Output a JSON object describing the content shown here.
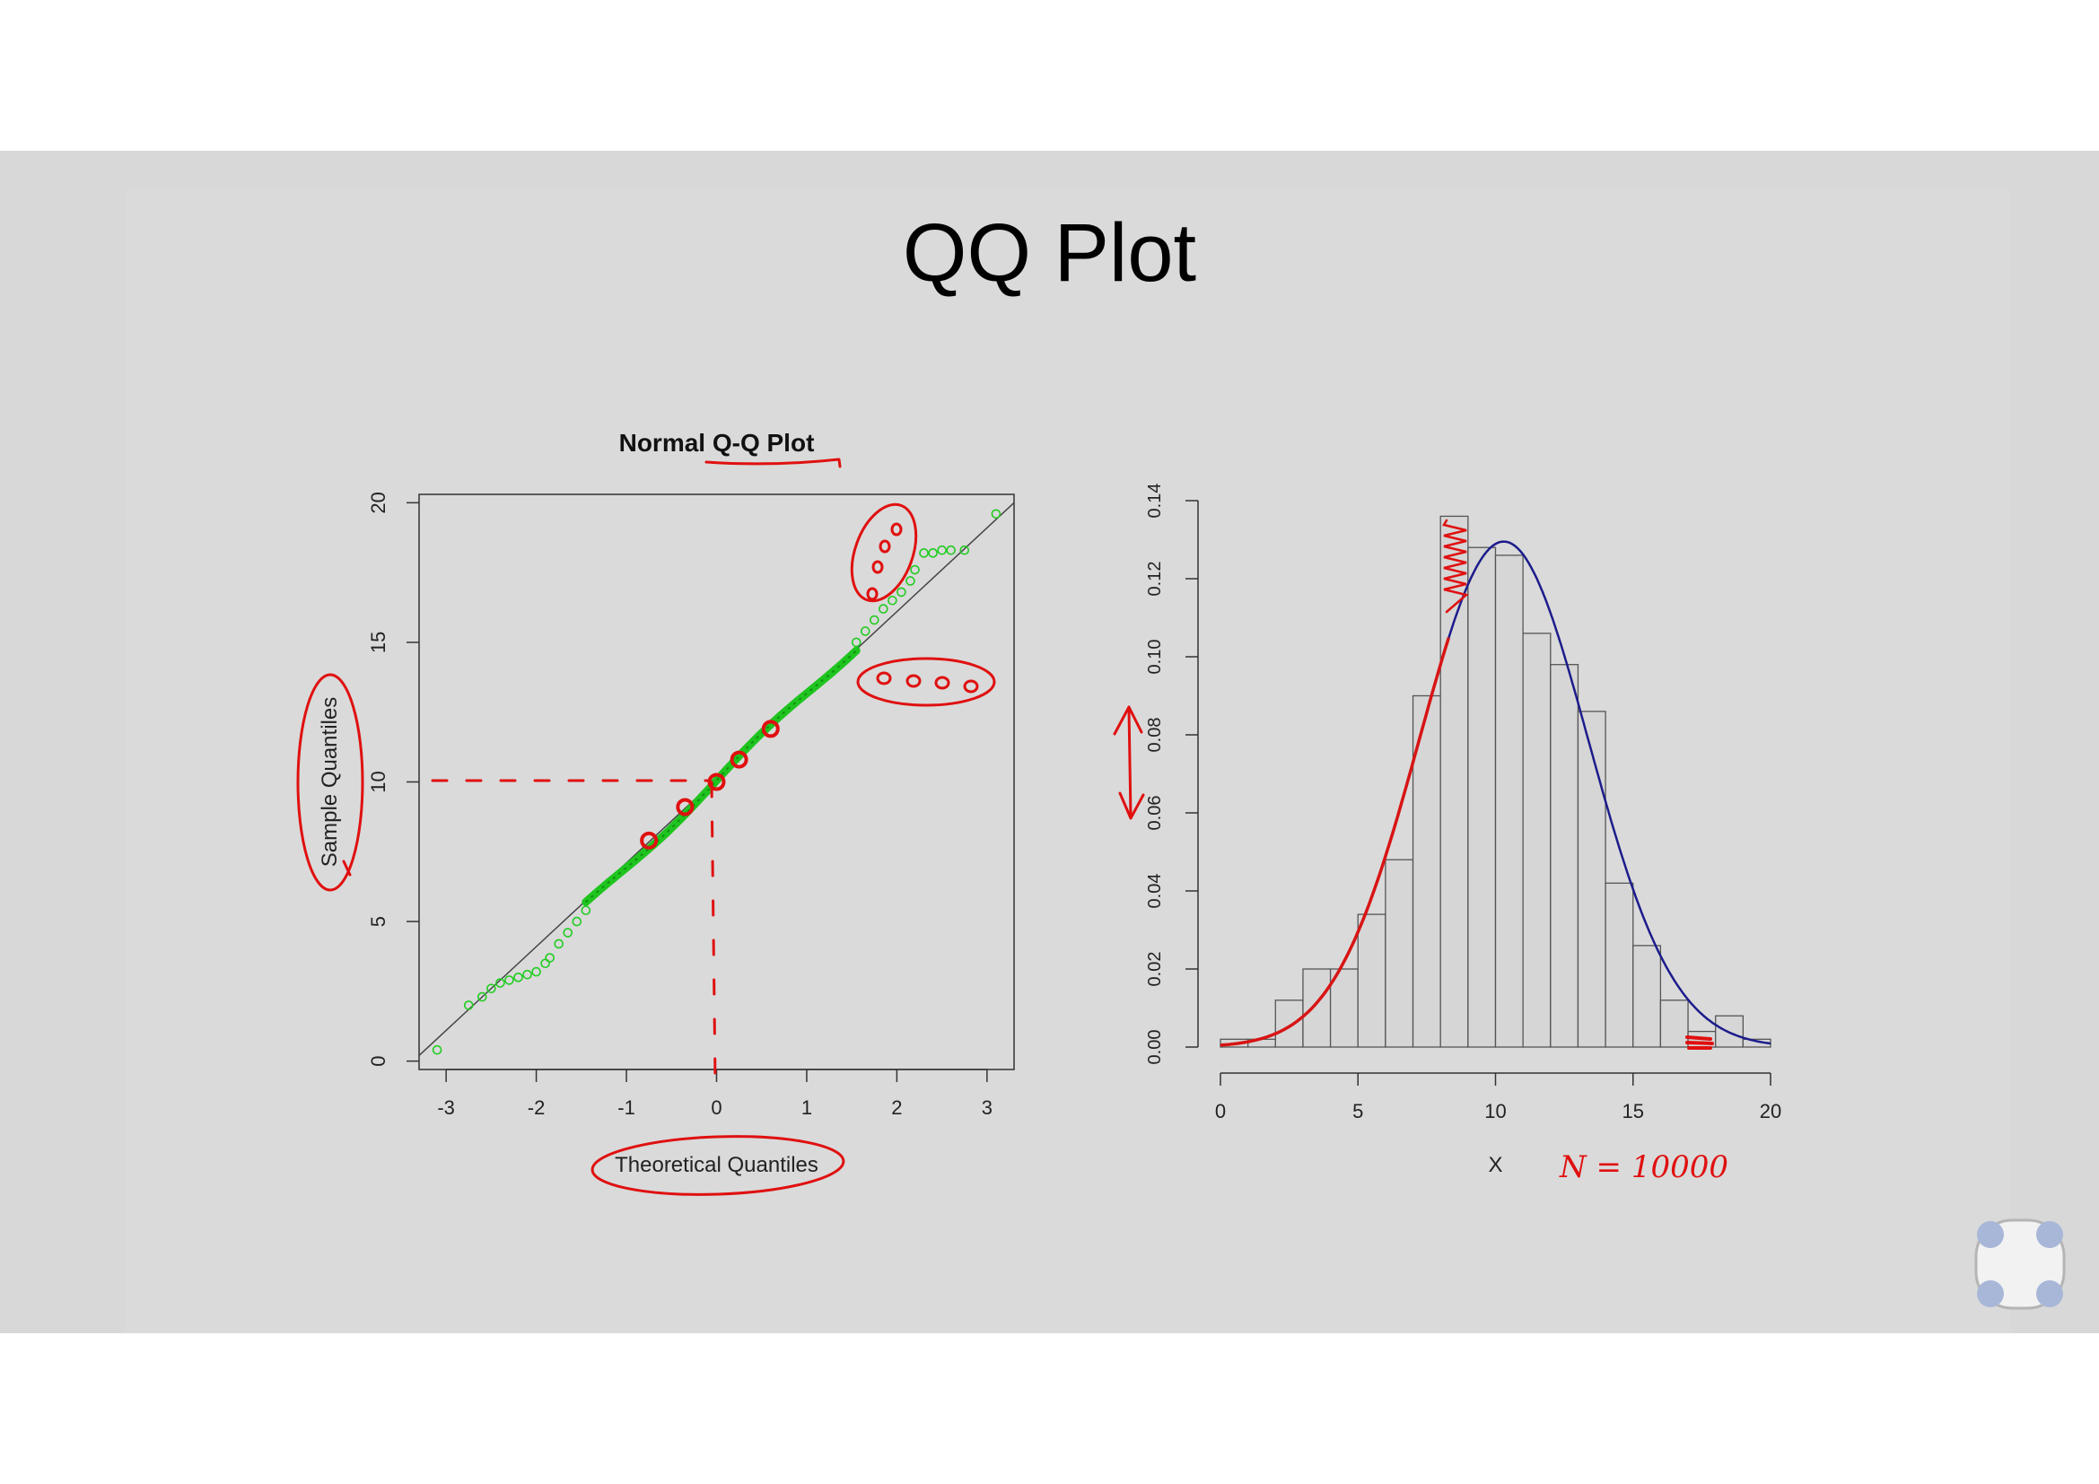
{
  "slide": {
    "title": "QQ Plot"
  },
  "chart_data": [
    {
      "type": "scatter",
      "title": "Normal Q-Q Plot",
      "xlabel": "Theoretical Quantiles",
      "ylabel": "Sample Quantiles",
      "xlim": [
        -3.3,
        3.3
      ],
      "ylim": [
        -0.3,
        20.3
      ],
      "x_ticks": [
        -3,
        -2,
        -1,
        0,
        1,
        2,
        3
      ],
      "y_ticks": [
        0,
        5,
        10,
        15,
        20
      ],
      "grid": false,
      "reference_line": {
        "from": [
          -3.3,
          0.2
        ],
        "to": [
          3.3,
          20.0
        ]
      },
      "series": [
        {
          "marker": "circle",
          "color": "#22cc22",
          "points": [
            [
              -3.1,
              0.4
            ],
            [
              -2.75,
              2.0
            ],
            [
              -2.6,
              2.3
            ],
            [
              -2.5,
              2.6
            ],
            [
              -2.4,
              2.8
            ],
            [
              -2.3,
              2.9
            ],
            [
              -2.2,
              3.0
            ],
            [
              -2.1,
              3.1
            ],
            [
              -2.0,
              3.2
            ],
            [
              -1.9,
              3.5
            ],
            [
              -1.85,
              3.7
            ],
            [
              -1.75,
              4.2
            ],
            [
              -1.65,
              4.6
            ],
            [
              -1.55,
              5.0
            ],
            [
              -1.45,
              5.4
            ],
            [
              1.55,
              15.0
            ],
            [
              1.65,
              15.4
            ],
            [
              1.75,
              15.8
            ],
            [
              1.85,
              16.2
            ],
            [
              1.95,
              16.5
            ],
            [
              2.05,
              16.8
            ],
            [
              2.15,
              17.2
            ],
            [
              2.2,
              17.6
            ],
            [
              2.3,
              18.2
            ],
            [
              2.4,
              18.2
            ],
            [
              2.5,
              18.3
            ],
            [
              2.6,
              18.3
            ],
            [
              2.75,
              18.3
            ],
            [
              3.1,
              19.6
            ]
          ]
        }
      ]
    },
    {
      "type": "bar",
      "xlabel": "X",
      "x_ticks": [
        0,
        5,
        10,
        15,
        20
      ],
      "y_ticks": [
        "0.00",
        "0.02",
        "0.04",
        "0.06",
        "0.08",
        "0.10",
        "0.12",
        "0.14"
      ],
      "xlim": [
        0,
        20
      ],
      "ylim": [
        0,
        0.14
      ],
      "grid": false,
      "bin_edges": [
        0,
        1,
        2,
        3,
        4,
        5,
        6,
        7,
        8,
        9,
        10,
        11,
        12,
        13,
        14,
        15,
        16,
        17,
        18,
        19,
        20
      ],
      "values": [
        0.002,
        0.002,
        0.012,
        0.02,
        0.02,
        0.034,
        0.048,
        0.09,
        0.136,
        0.128,
        0.126,
        0.106,
        0.098,
        0.086,
        0.042,
        0.026,
        0.012,
        0.004,
        0.008,
        0.002
      ],
      "density_curve": {
        "type": "normal",
        "mean": 10.3,
        "sd": 3.08,
        "color": "#1c1c8c"
      }
    }
  ],
  "annotations": {
    "n_label": "N = 10000"
  }
}
